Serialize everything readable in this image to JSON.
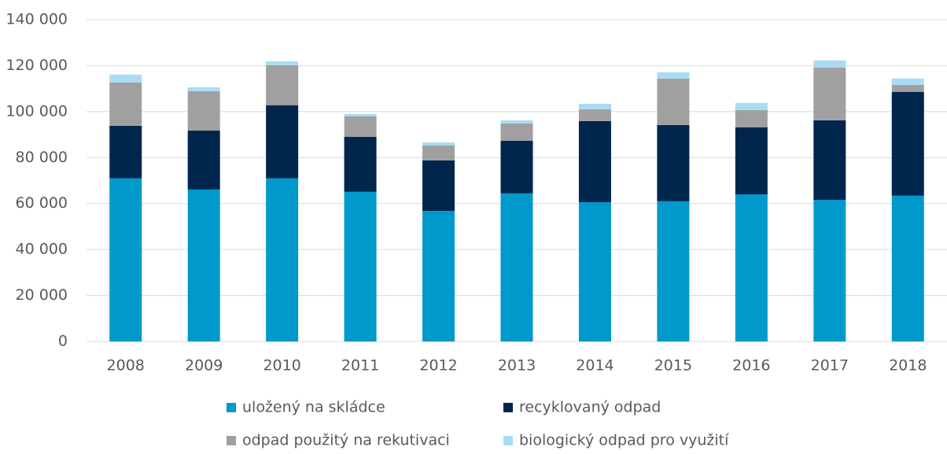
{
  "chart_data": {
    "type": "stacked_bar",
    "categories": [
      "2008",
      "2009",
      "2010",
      "2011",
      "2012",
      "2013",
      "2014",
      "2015",
      "2016",
      "2017",
      "2018"
    ],
    "series": [
      {
        "name": "uložený na skládce",
        "color": "#0099cc",
        "values": [
          71000,
          66100,
          71000,
          65100,
          56800,
          64400,
          60600,
          61000,
          64000,
          61600,
          63400
        ]
      },
      {
        "name": "recyklovaný odpad",
        "color": "#00264d",
        "values": [
          22800,
          25700,
          31800,
          23900,
          22000,
          22900,
          35300,
          33200,
          29200,
          34600,
          45200
        ]
      },
      {
        "name": "odpad použitý na rekutivaci",
        "color": "#a0a0a0",
        "values": [
          18900,
          17100,
          17400,
          8900,
          6500,
          7600,
          5100,
          20200,
          7500,
          23000,
          3000
        ]
      },
      {
        "name": "biologický odpad pro využití",
        "color": "#a8dcf5",
        "values": [
          3400,
          1700,
          1700,
          1100,
          1300,
          1300,
          2400,
          2700,
          3100,
          3100,
          2800
        ]
      }
    ],
    "ylim": [
      0,
      140000
    ],
    "yticks": [
      0,
      {
        "value": 20000,
        "label": "20 000"
      },
      {
        "value": 40000,
        "label": "40 000"
      },
      {
        "value": 60000,
        "label": "60 000"
      },
      {
        "value": 80000,
        "label": "80 000"
      },
      {
        "value": 100000,
        "label": "100 000"
      },
      {
        "value": 120000,
        "label": "120 000"
      },
      {
        "value": 140000,
        "label": "140 000"
      }
    ],
    "grid": true
  }
}
